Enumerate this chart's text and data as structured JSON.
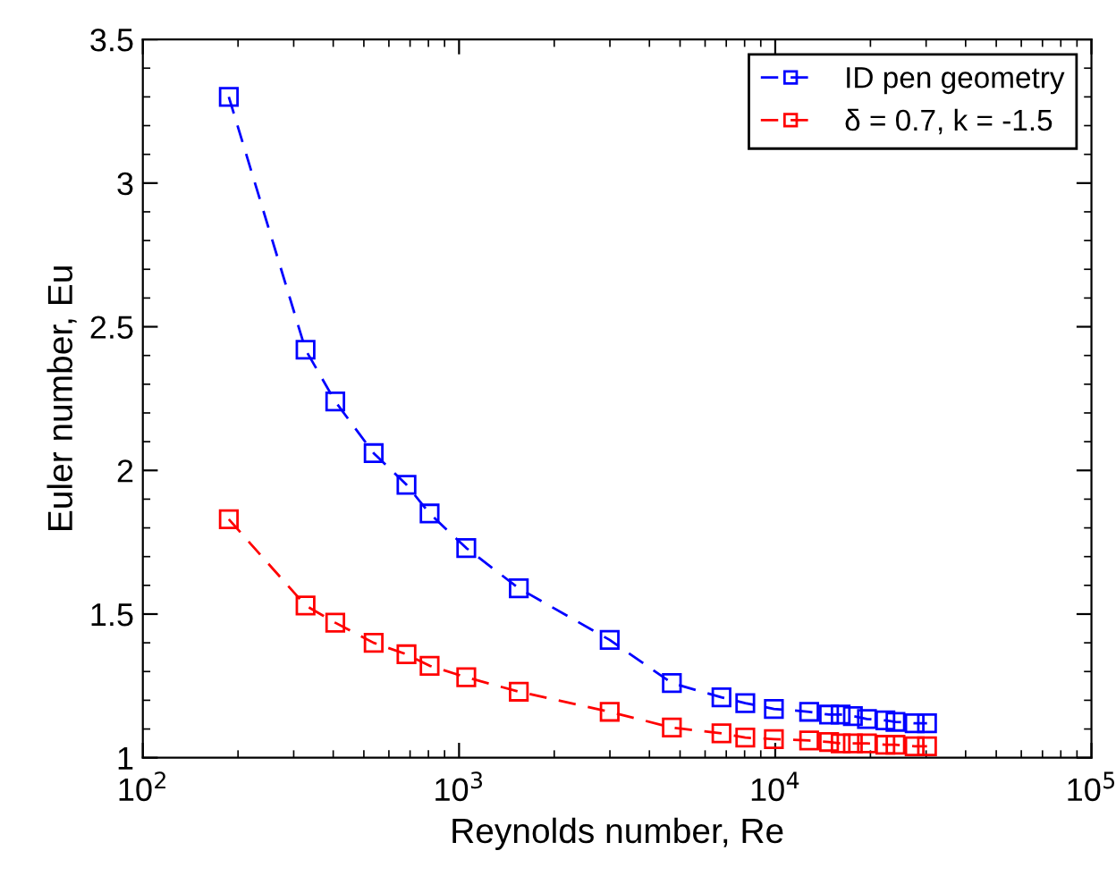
{
  "chart_data": {
    "type": "line",
    "xlabel": "Reynolds number, Re",
    "ylabel": "Euler number, Eu",
    "x": [
      187,
      327,
      406,
      537,
      682,
      807,
      1054,
      1545,
      2995,
      4710,
      6760,
      8040,
      9900,
      12800,
      14800,
      16100,
      17600,
      19500,
      22300,
      24000,
      27600,
      30200
    ],
    "series": [
      {
        "name": "ID pen geometry",
        "color": "#0000ff",
        "values": [
          3.3,
          2.42,
          2.24,
          2.06,
          1.95,
          1.85,
          1.73,
          1.59,
          1.41,
          1.26,
          1.21,
          1.19,
          1.17,
          1.16,
          1.15,
          1.15,
          1.145,
          1.135,
          1.13,
          1.125,
          1.12,
          1.12
        ]
      },
      {
        "name": "δ = 0.7, k = -1.5",
        "color": "#ff0000",
        "values": [
          1.83,
          1.53,
          1.47,
          1.4,
          1.36,
          1.32,
          1.28,
          1.23,
          1.16,
          1.105,
          1.085,
          1.07,
          1.065,
          1.06,
          1.055,
          1.05,
          1.05,
          1.05,
          1.045,
          1.045,
          1.04,
          1.04
        ]
      }
    ],
    "log": "x",
    "xlim": [
      100,
      100000
    ],
    "xticks": [
      {
        "value": 100,
        "label": "10$^{2}$"
      },
      {
        "value": 1000,
        "label": "10$^{3}$"
      },
      {
        "value": 10000,
        "label": "10$^{4}$"
      },
      {
        "value": 100000,
        "label": "10$^{5}$"
      }
    ],
    "ylim": [
      1,
      3.5
    ],
    "yticks": [
      1,
      1.5,
      2,
      2.5,
      3,
      3.5
    ],
    "grid": false,
    "legend": "top right",
    "marker": "square",
    "line_style": "dashed"
  }
}
